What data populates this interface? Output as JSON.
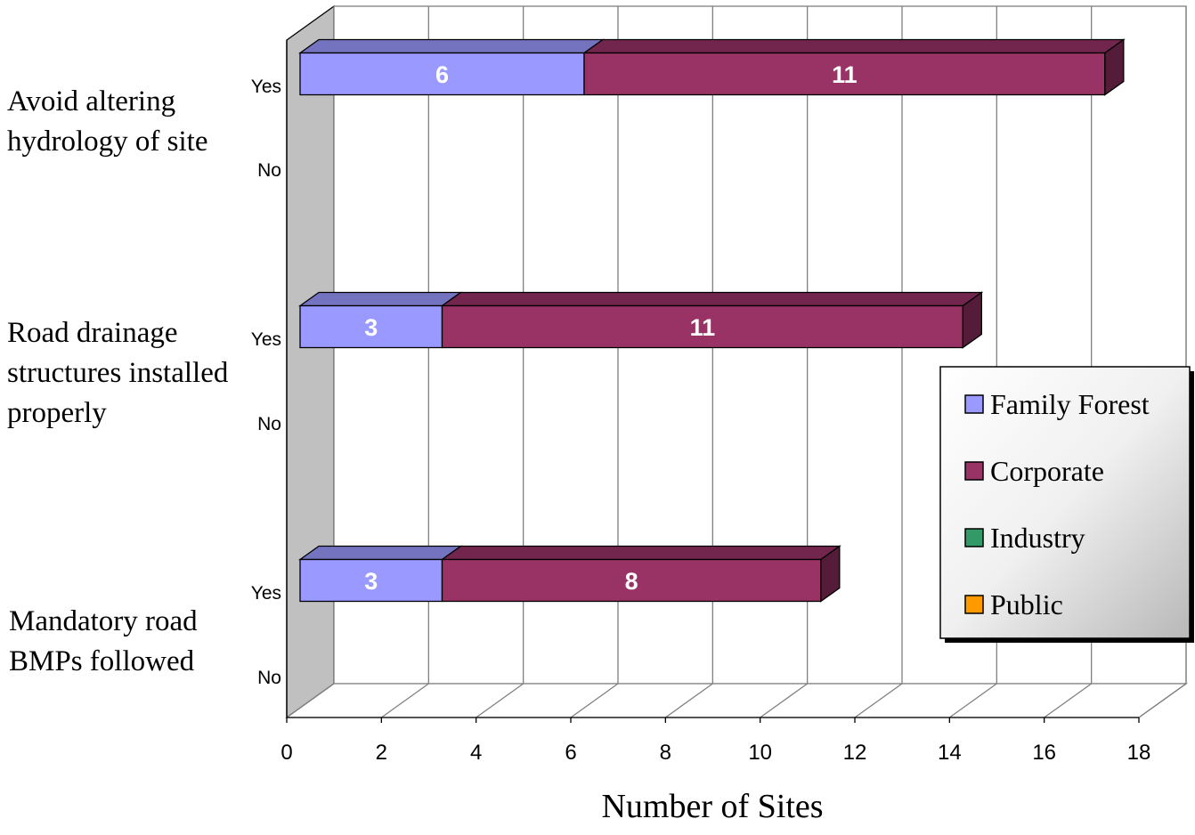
{
  "chart_data": {
    "type": "bar",
    "orientation": "horizontal",
    "stacked": true,
    "three_d": true,
    "xlabel": "Number of Sites",
    "xlim": [
      0,
      18
    ],
    "xticks": [
      0,
      2,
      4,
      6,
      8,
      10,
      12,
      14,
      16,
      18
    ],
    "groups": [
      "Avoid altering hydrology of site",
      "Road drainage structures installed properly",
      "Mandatory road BMPs followed"
    ],
    "subcategories": [
      "Yes",
      "No"
    ],
    "series": [
      {
        "name": "Family Forest",
        "color": "#9999FF",
        "values": [
          [
            6,
            0
          ],
          [
            3,
            0
          ],
          [
            3,
            0
          ]
        ]
      },
      {
        "name": "Corporate",
        "color": "#993366",
        "values": [
          [
            11,
            0
          ],
          [
            11,
            0
          ],
          [
            8,
            0
          ]
        ]
      },
      {
        "name": "Industry",
        "color": "#339966",
        "values": [
          [
            0,
            0
          ],
          [
            0,
            0
          ],
          [
            0,
            0
          ]
        ]
      },
      {
        "name": "Public",
        "color": "#FF9900",
        "values": [
          [
            0,
            0
          ],
          [
            0,
            0
          ],
          [
            0,
            0
          ]
        ]
      }
    ],
    "data_labels": true,
    "grid": true,
    "legend_position": "right"
  }
}
